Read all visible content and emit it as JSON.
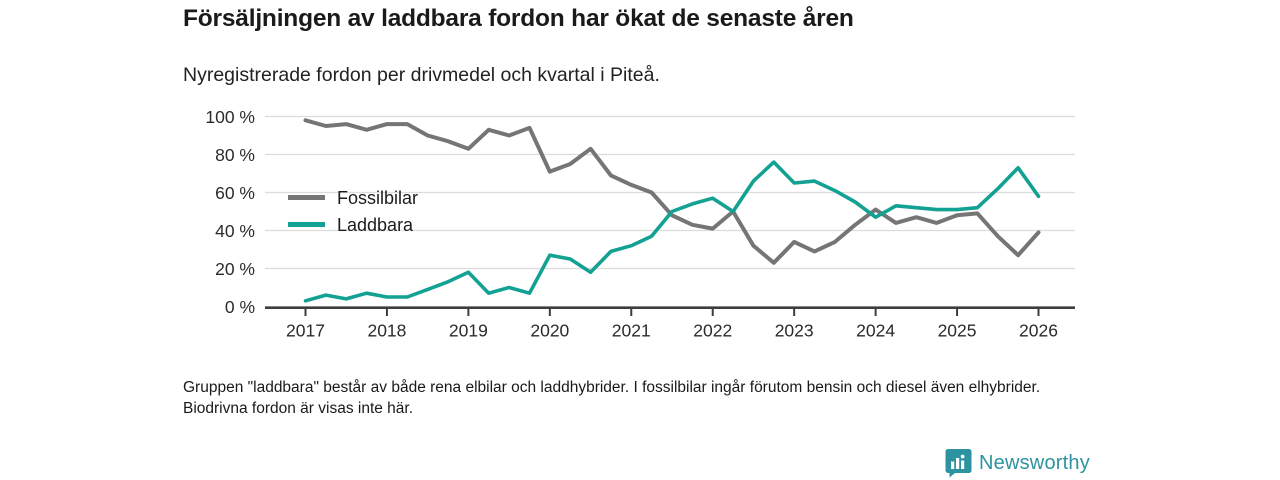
{
  "header": {
    "title": "Försäljningen av laddbara fordon har ökat de senaste åren",
    "subtitle": "Nyregistrerade fordon per drivmedel och kvartal i Piteå."
  },
  "footer": {
    "note": "Gruppen \"laddbara\" består av både rena elbilar och laddhybrider. I fossilbilar ingår förutom bensin och diesel även elhybrider. Biodrivna fordon är visas inte här."
  },
  "brand": {
    "name": "Newsworthy",
    "color": "#2d93a0",
    "icon": "bar-chart-bubble-icon"
  },
  "chart_data": {
    "type": "line",
    "title": "Försäljningen av laddbara fordon har ökat de senaste åren",
    "subtitle": "Nyregistrerade fordon per drivmedel och kvartal i Piteå.",
    "xlabel": "",
    "ylabel": "",
    "unit": "%",
    "ylim": [
      0,
      100
    ],
    "grid": true,
    "legend_position": "inside-top-left",
    "x_tick_labels": [
      "2017",
      "2018",
      "2019",
      "2020",
      "2021",
      "2022",
      "2023",
      "2024",
      "2025",
      "2026"
    ],
    "yticks": [
      0,
      20,
      40,
      60,
      80,
      100
    ],
    "ytick_labels": [
      "0 %",
      "20 %",
      "40 %",
      "60 %",
      "80 %",
      "100 %"
    ],
    "categories": [
      "2017 Q1",
      "2017 Q2",
      "2017 Q3",
      "2017 Q4",
      "2018 Q1",
      "2018 Q2",
      "2018 Q3",
      "2018 Q4",
      "2019 Q1",
      "2019 Q2",
      "2019 Q3",
      "2019 Q4",
      "2020 Q1",
      "2020 Q2",
      "2020 Q3",
      "2020 Q4",
      "2021 Q1",
      "2021 Q2",
      "2021 Q3",
      "2021 Q4",
      "2022 Q1",
      "2022 Q2",
      "2022 Q3",
      "2022 Q4",
      "2023 Q1",
      "2023 Q2",
      "2023 Q3",
      "2023 Q4",
      "2024 Q1",
      "2024 Q2",
      "2024 Q3",
      "2024 Q4",
      "2025 Q1",
      "2025 Q2",
      "2025 Q3",
      "2025 Q4",
      "2026 Q1"
    ],
    "series": [
      {
        "name": "Fossilbilar",
        "color": "#757575",
        "stroke_width": 4,
        "values": [
          98,
          95,
          96,
          93,
          96,
          96,
          90,
          87,
          83,
          93,
          90,
          94,
          71,
          75,
          83,
          69,
          64,
          60,
          48,
          43,
          41,
          50,
          32,
          23,
          34,
          29,
          34,
          43,
          51,
          44,
          47,
          44,
          48,
          49,
          37,
          27,
          39
        ]
      },
      {
        "name": "Laddbara",
        "color": "#12a192",
        "stroke_width": 3.6,
        "values": [
          3,
          6,
          4,
          7,
          5,
          5,
          9,
          13,
          18,
          7,
          10,
          7,
          27,
          25,
          18,
          29,
          32,
          37,
          50,
          54,
          57,
          50,
          66,
          76,
          65,
          66,
          61,
          55,
          47,
          53,
          52,
          51,
          51,
          52,
          62,
          73,
          58
        ]
      }
    ]
  }
}
